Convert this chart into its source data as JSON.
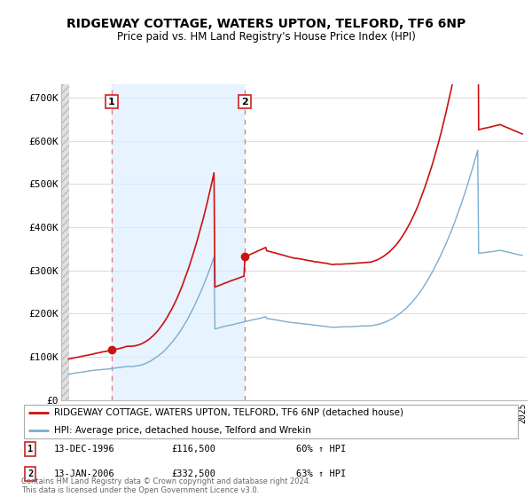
{
  "title": "RIDGEWAY COTTAGE, WATERS UPTON, TELFORD, TF6 6NP",
  "subtitle": "Price paid vs. HM Land Registry's House Price Index (HPI)",
  "ylabel_ticks": [
    "£0",
    "£100K",
    "£200K",
    "£300K",
    "£400K",
    "£500K",
    "£600K",
    "£700K"
  ],
  "ytick_values": [
    0,
    100000,
    200000,
    300000,
    400000,
    500000,
    600000,
    700000
  ],
  "ylim": [
    0,
    730000
  ],
  "xlim_start": 1993.5,
  "xlim_end": 2025.3,
  "purchase1_x": 1996.95,
  "purchase1_y": 116500,
  "purchase1_label": "1",
  "purchase1_date": "13-DEC-1996",
  "purchase1_price": "£116,500",
  "purchase1_hpi": "60% ↑ HPI",
  "purchase2_x": 2006.04,
  "purchase2_y": 332500,
  "purchase2_label": "2",
  "purchase2_date": "13-JAN-2006",
  "purchase2_price": "£332,500",
  "purchase2_hpi": "63% ↑ HPI",
  "hpi_line_color": "#7aadcf",
  "property_line_color": "#cc1111",
  "marker_color": "#cc1111",
  "vline_color": "#e08080",
  "shade_color": "#ddeeff",
  "legend_property_label": "RIDGEWAY COTTAGE, WATERS UPTON, TELFORD, TF6 6NP (detached house)",
  "legend_hpi_label": "HPI: Average price, detached house, Telford and Wrekin",
  "footer": "Contains HM Land Registry data © Crown copyright and database right 2024.\nThis data is licensed under the Open Government Licence v3.0.",
  "hatch_color": "#cccccc",
  "background_color": "#ffffff",
  "grid_color": "#dddddd"
}
